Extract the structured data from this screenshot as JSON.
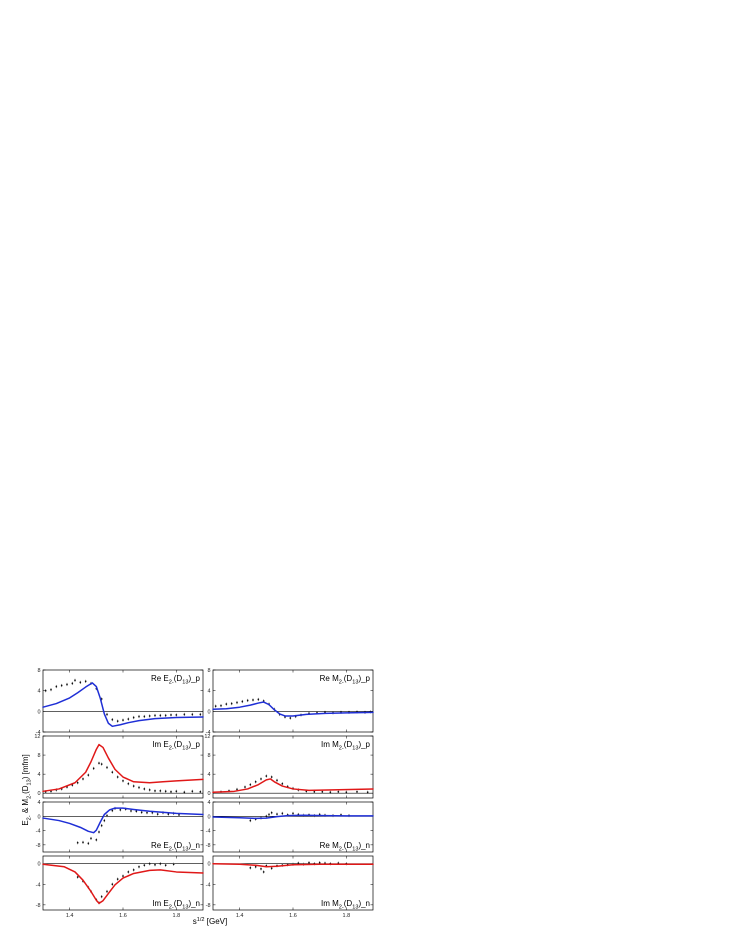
{
  "figure": {
    "xlabel": "s^{1/2} [GeV]",
    "ylabel": "E_{2-} & M_{2-}(D_{13}) [mfm]"
  },
  "chart_data": [
    {
      "type": "line",
      "label": "Re E_{2-}(D_{13})_p",
      "xlim": [
        1.3,
        1.9
      ],
      "ylim": [
        -4,
        8
      ],
      "yticks": [
        -4,
        0,
        4,
        8
      ],
      "xticks": [
        1.4,
        1.6,
        1.8
      ],
      "curve_color": "#1f2fd6",
      "curve": [
        [
          1.3,
          0.8
        ],
        [
          1.35,
          1.5
        ],
        [
          1.4,
          2.6
        ],
        [
          1.43,
          3.6
        ],
        [
          1.46,
          4.7
        ],
        [
          1.485,
          5.5
        ],
        [
          1.5,
          4.8
        ],
        [
          1.515,
          2.5
        ],
        [
          1.53,
          -0.5
        ],
        [
          1.545,
          -2.3
        ],
        [
          1.56,
          -2.9
        ],
        [
          1.59,
          -2.6
        ],
        [
          1.62,
          -2.2
        ],
        [
          1.66,
          -1.8
        ],
        [
          1.72,
          -1.4
        ],
        [
          1.8,
          -1.2
        ],
        [
          1.9,
          -1.1
        ]
      ],
      "points": [
        [
          1.31,
          4.0
        ],
        [
          1.33,
          4.2
        ],
        [
          1.35,
          4.8
        ],
        [
          1.37,
          5.0
        ],
        [
          1.39,
          5.2
        ],
        [
          1.41,
          5.4
        ],
        [
          1.42,
          6.0
        ],
        [
          1.44,
          5.6
        ],
        [
          1.46,
          5.8
        ],
        [
          1.48,
          5.4
        ],
        [
          1.5,
          4.4
        ],
        [
          1.52,
          2.4
        ],
        [
          1.54,
          -0.6
        ],
        [
          1.56,
          -1.6
        ],
        [
          1.58,
          -1.9
        ],
        [
          1.6,
          -1.7
        ],
        [
          1.62,
          -1.5
        ],
        [
          1.64,
          -1.2
        ],
        [
          1.66,
          -1.0
        ],
        [
          1.68,
          -1.0
        ],
        [
          1.7,
          -0.9
        ],
        [
          1.72,
          -0.8
        ],
        [
          1.74,
          -0.8
        ],
        [
          1.76,
          -0.8
        ],
        [
          1.78,
          -0.7
        ],
        [
          1.8,
          -0.7
        ],
        [
          1.83,
          -0.6
        ],
        [
          1.86,
          -0.6
        ],
        [
          1.89,
          -0.6
        ]
      ]
    },
    {
      "type": "line",
      "label": "Re M_{2-}(D_{13})_p",
      "xlim": [
        1.3,
        1.9
      ],
      "ylim": [
        -4,
        8
      ],
      "yticks": [
        -4,
        0,
        4,
        8
      ],
      "xticks": [
        1.4,
        1.6,
        1.8
      ],
      "curve_color": "#1f2fd6",
      "curve": [
        [
          1.3,
          0.4
        ],
        [
          1.35,
          0.5
        ],
        [
          1.4,
          0.8
        ],
        [
          1.44,
          1.2
        ],
        [
          1.47,
          1.6
        ],
        [
          1.49,
          1.8
        ],
        [
          1.51,
          1.3
        ],
        [
          1.53,
          0.3
        ],
        [
          1.55,
          -0.5
        ],
        [
          1.57,
          -0.9
        ],
        [
          1.6,
          -0.9
        ],
        [
          1.65,
          -0.6
        ],
        [
          1.72,
          -0.4
        ],
        [
          1.8,
          -0.3
        ],
        [
          1.9,
          -0.2
        ]
      ],
      "points": [
        [
          1.31,
          1.0
        ],
        [
          1.33,
          1.1
        ],
        [
          1.35,
          1.4
        ],
        [
          1.37,
          1.5
        ],
        [
          1.39,
          1.7
        ],
        [
          1.41,
          1.9
        ],
        [
          1.43,
          2.1
        ],
        [
          1.45,
          2.2
        ],
        [
          1.47,
          2.3
        ],
        [
          1.49,
          2.0
        ],
        [
          1.51,
          1.4
        ],
        [
          1.53,
          0.4
        ],
        [
          1.55,
          -0.6
        ],
        [
          1.57,
          -1.1
        ],
        [
          1.59,
          -1.3
        ],
        [
          1.61,
          -1.0
        ],
        [
          1.63,
          -0.7
        ],
        [
          1.66,
          -0.4
        ],
        [
          1.69,
          -0.3
        ],
        [
          1.72,
          -0.2
        ],
        [
          1.75,
          -0.3
        ],
        [
          1.78,
          -0.2
        ],
        [
          1.81,
          -0.2
        ],
        [
          1.84,
          -0.1
        ],
        [
          1.87,
          -0.2
        ],
        [
          1.89,
          -0.1
        ]
      ]
    },
    {
      "type": "line",
      "label": "Im E_{2-}(D_{13})_p",
      "xlim": [
        1.3,
        1.9
      ],
      "ylim": [
        -1,
        12
      ],
      "yticks": [
        0,
        4,
        8,
        12
      ],
      "xticks": [
        1.4,
        1.6,
        1.8
      ],
      "curve_color": "#e01818",
      "curve": [
        [
          1.3,
          0.4
        ],
        [
          1.36,
          0.9
        ],
        [
          1.42,
          2.2
        ],
        [
          1.46,
          4.4
        ],
        [
          1.48,
          6.6
        ],
        [
          1.5,
          9.2
        ],
        [
          1.51,
          10.2
        ],
        [
          1.525,
          9.6
        ],
        [
          1.545,
          7.4
        ],
        [
          1.57,
          5.0
        ],
        [
          1.6,
          3.4
        ],
        [
          1.64,
          2.4
        ],
        [
          1.7,
          2.2
        ],
        [
          1.75,
          2.4
        ],
        [
          1.8,
          2.6
        ],
        [
          1.9,
          2.9
        ]
      ],
      "points": [
        [
          1.31,
          0.3
        ],
        [
          1.33,
          0.4
        ],
        [
          1.35,
          0.7
        ],
        [
          1.37,
          0.9
        ],
        [
          1.39,
          1.3
        ],
        [
          1.41,
          1.7
        ],
        [
          1.43,
          2.2
        ],
        [
          1.45,
          3.0
        ],
        [
          1.47,
          3.8
        ],
        [
          1.49,
          5.2
        ],
        [
          1.51,
          6.3
        ],
        [
          1.52,
          6.1
        ],
        [
          1.54,
          5.4
        ],
        [
          1.56,
          4.4
        ],
        [
          1.58,
          3.4
        ],
        [
          1.6,
          2.6
        ],
        [
          1.62,
          2.0
        ],
        [
          1.64,
          1.5
        ],
        [
          1.66,
          1.2
        ],
        [
          1.68,
          0.9
        ],
        [
          1.7,
          0.7
        ],
        [
          1.72,
          0.5
        ],
        [
          1.74,
          0.5
        ],
        [
          1.76,
          0.4
        ],
        [
          1.78,
          0.3
        ],
        [
          1.8,
          0.4
        ],
        [
          1.83,
          0.2
        ],
        [
          1.86,
          0.4
        ],
        [
          1.89,
          0.3
        ]
      ]
    },
    {
      "type": "line",
      "label": "Im M_{2-}(D_{13})_p",
      "xlim": [
        1.3,
        1.9
      ],
      "ylim": [
        -1,
        12
      ],
      "yticks": [
        0,
        4,
        8,
        12
      ],
      "xticks": [
        1.4,
        1.6,
        1.8
      ],
      "curve_color": "#e01818",
      "curve": [
        [
          1.3,
          0.2
        ],
        [
          1.38,
          0.4
        ],
        [
          1.43,
          0.9
        ],
        [
          1.47,
          1.8
        ],
        [
          1.5,
          2.8
        ],
        [
          1.515,
          3.0
        ],
        [
          1.53,
          2.4
        ],
        [
          1.56,
          1.5
        ],
        [
          1.6,
          0.9
        ],
        [
          1.66,
          0.6
        ],
        [
          1.75,
          0.7
        ],
        [
          1.9,
          0.9
        ]
      ],
      "points": [
        [
          1.33,
          0.3
        ],
        [
          1.36,
          0.5
        ],
        [
          1.39,
          0.8
        ],
        [
          1.42,
          1.3
        ],
        [
          1.44,
          1.8
        ],
        [
          1.46,
          2.4
        ],
        [
          1.48,
          3.0
        ],
        [
          1.5,
          3.6
        ],
        [
          1.52,
          3.4
        ],
        [
          1.54,
          2.7
        ],
        [
          1.56,
          2.0
        ],
        [
          1.58,
          1.4
        ],
        [
          1.6,
          1.0
        ],
        [
          1.62,
          0.7
        ],
        [
          1.65,
          0.4
        ],
        [
          1.68,
          0.3
        ],
        [
          1.71,
          0.3
        ],
        [
          1.74,
          0.2
        ],
        [
          1.77,
          0.3
        ],
        [
          1.8,
          0.2
        ],
        [
          1.84,
          0.3
        ],
        [
          1.88,
          0.2
        ]
      ]
    },
    {
      "type": "line",
      "label": "Re E_{2-}(D_{13})_n",
      "xlim": [
        1.3,
        1.9
      ],
      "ylim": [
        -10,
        4
      ],
      "yticks": [
        -8,
        -4,
        0,
        4
      ],
      "xticks": [
        1.4,
        1.6,
        1.8
      ],
      "curve_color": "#1f2fd6",
      "curve": [
        [
          1.3,
          -0.5
        ],
        [
          1.36,
          -1.2
        ],
        [
          1.4,
          -2.0
        ],
        [
          1.44,
          -3.1
        ],
        [
          1.47,
          -4.2
        ],
        [
          1.49,
          -4.6
        ],
        [
          1.5,
          -3.9
        ],
        [
          1.515,
          -1.6
        ],
        [
          1.53,
          0.5
        ],
        [
          1.55,
          1.8
        ],
        [
          1.57,
          2.3
        ],
        [
          1.6,
          2.3
        ],
        [
          1.64,
          1.9
        ],
        [
          1.7,
          1.4
        ],
        [
          1.8,
          0.8
        ],
        [
          1.9,
          0.5
        ]
      ],
      "points": [
        [
          1.43,
          -7.4
        ],
        [
          1.45,
          -7.3
        ],
        [
          1.47,
          -7.6
        ],
        [
          1.48,
          -6.2
        ],
        [
          1.5,
          -6.6
        ],
        [
          1.51,
          -4.4
        ],
        [
          1.52,
          -2.6
        ],
        [
          1.53,
          -1.2
        ],
        [
          1.54,
          0.2
        ],
        [
          1.56,
          1.6
        ],
        [
          1.57,
          2.2
        ],
        [
          1.59,
          1.8
        ],
        [
          1.61,
          2.0
        ],
        [
          1.63,
          1.5
        ],
        [
          1.65,
          1.4
        ],
        [
          1.67,
          1.1
        ],
        [
          1.69,
          1.0
        ],
        [
          1.71,
          1.0
        ],
        [
          1.73,
          0.6
        ],
        [
          1.75,
          1.0
        ],
        [
          1.77,
          0.6
        ],
        [
          1.79,
          0.8
        ],
        [
          1.81,
          0.4
        ]
      ]
    },
    {
      "type": "line",
      "label": "Re M_{2-}(D_{13})_n",
      "xlim": [
        1.3,
        1.9
      ],
      "ylim": [
        -10,
        4
      ],
      "yticks": [
        -8,
        -4,
        0,
        4
      ],
      "xticks": [
        1.4,
        1.6,
        1.8
      ],
      "curve_color": "#1f2fd6",
      "curve": [
        [
          1.3,
          -0.2
        ],
        [
          1.4,
          -0.4
        ],
        [
          1.46,
          -0.6
        ],
        [
          1.5,
          -0.5
        ],
        [
          1.54,
          -0.1
        ],
        [
          1.58,
          0.2
        ],
        [
          1.64,
          0.3
        ],
        [
          1.72,
          0.2
        ],
        [
          1.8,
          0.1
        ],
        [
          1.9,
          0.1
        ]
      ],
      "points": [
        [
          1.44,
          -1.2
        ],
        [
          1.46,
          -0.8
        ],
        [
          1.48,
          -0.5
        ],
        [
          1.5,
          0.0
        ],
        [
          1.51,
          0.5
        ],
        [
          1.52,
          1.0
        ],
        [
          1.54,
          0.6
        ],
        [
          1.56,
          0.8
        ],
        [
          1.58,
          0.4
        ],
        [
          1.6,
          0.8
        ],
        [
          1.62,
          0.5
        ],
        [
          1.64,
          0.3
        ],
        [
          1.66,
          0.4
        ],
        [
          1.68,
          0.2
        ],
        [
          1.7,
          0.5
        ],
        [
          1.72,
          0.3
        ],
        [
          1.75,
          0.2
        ],
        [
          1.78,
          0.4
        ],
        [
          1.81,
          0.2
        ]
      ]
    },
    {
      "type": "line",
      "label": "Im E_{2-}(D_{13})_n",
      "xlim": [
        1.3,
        1.9
      ],
      "ylim": [
        -9,
        1.5
      ],
      "yticks": [
        -8,
        -4,
        0
      ],
      "xticks": [
        1.4,
        1.6,
        1.8
      ],
      "curve_color": "#e01818",
      "curve": [
        [
          1.3,
          -0.1
        ],
        [
          1.38,
          -0.6
        ],
        [
          1.42,
          -1.6
        ],
        [
          1.45,
          -3.2
        ],
        [
          1.48,
          -5.4
        ],
        [
          1.5,
          -7.1
        ],
        [
          1.51,
          -7.7
        ],
        [
          1.525,
          -7.2
        ],
        [
          1.545,
          -5.8
        ],
        [
          1.57,
          -4.1
        ],
        [
          1.6,
          -2.8
        ],
        [
          1.64,
          -1.9
        ],
        [
          1.7,
          -1.3
        ],
        [
          1.74,
          -1.2
        ],
        [
          1.8,
          -1.6
        ],
        [
          1.9,
          -1.8
        ]
      ],
      "points": [
        [
          1.43,
          -2.6
        ],
        [
          1.45,
          -3.4
        ],
        [
          1.47,
          -4.6
        ],
        [
          1.48,
          -5.4
        ],
        [
          1.5,
          -7.0
        ],
        [
          1.51,
          -7.6
        ],
        [
          1.52,
          -6.4
        ],
        [
          1.54,
          -5.4
        ],
        [
          1.56,
          -4.0
        ],
        [
          1.58,
          -3.0
        ],
        [
          1.6,
          -2.4
        ],
        [
          1.62,
          -1.6
        ],
        [
          1.64,
          -1.2
        ],
        [
          1.66,
          -0.6
        ],
        [
          1.68,
          -0.3
        ],
        [
          1.7,
          0.0
        ],
        [
          1.72,
          -0.2
        ],
        [
          1.74,
          0.0
        ],
        [
          1.76,
          -0.3
        ],
        [
          1.79,
          -0.1
        ]
      ]
    },
    {
      "type": "line",
      "label": "Im M_{2-}(D_{13})_n",
      "xlim": [
        1.3,
        1.9
      ],
      "ylim": [
        -9,
        1.5
      ],
      "yticks": [
        -8,
        -4,
        0
      ],
      "xticks": [
        1.4,
        1.6,
        1.8
      ],
      "curve_color": "#e01818",
      "curve": [
        [
          1.3,
          0.0
        ],
        [
          1.4,
          -0.1
        ],
        [
          1.46,
          -0.3
        ],
        [
          1.5,
          -0.6
        ],
        [
          1.54,
          -0.5
        ],
        [
          1.6,
          -0.2
        ],
        [
          1.7,
          -0.1
        ],
        [
          1.9,
          -0.1
        ]
      ],
      "points": [
        [
          1.44,
          -0.8
        ],
        [
          1.46,
          -0.6
        ],
        [
          1.48,
          -1.0
        ],
        [
          1.49,
          -1.6
        ],
        [
          1.5,
          -0.4
        ],
        [
          1.52,
          -0.9
        ],
        [
          1.54,
          -0.4
        ],
        [
          1.56,
          -0.3
        ],
        [
          1.58,
          -0.2
        ],
        [
          1.6,
          -0.1
        ],
        [
          1.62,
          0.1
        ],
        [
          1.64,
          -0.1
        ],
        [
          1.66,
          0.2
        ],
        [
          1.68,
          0.0
        ],
        [
          1.7,
          0.2
        ],
        [
          1.72,
          0.1
        ],
        [
          1.74,
          0.0
        ],
        [
          1.77,
          0.1
        ],
        [
          1.8,
          0.0
        ]
      ]
    }
  ]
}
